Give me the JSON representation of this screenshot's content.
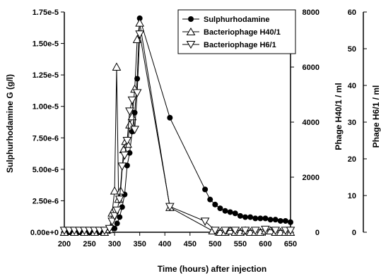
{
  "chart_data": {
    "type": "line",
    "xlabel": "Time (hours) after injection",
    "ylabel_left": "Sulphurhodamine G (g/l)",
    "ylabel_right1": "Phage H40/1 / ml",
    "ylabel_right2": "Phage H6/1 / ml",
    "xlim": [
      200,
      650
    ],
    "ylim_left": [
      0,
      1.75e-05
    ],
    "ylim_right1": [
      0,
      8000
    ],
    "ylim_right2": [
      0,
      60
    ],
    "x_ticks": [
      "200",
      "250",
      "300",
      "350",
      "400",
      "450",
      "500",
      "550",
      "600",
      "650"
    ],
    "y_left_ticks": [
      "0.00e+0",
      "2.50e-6",
      "5.00e-6",
      "7.50e-6",
      "1.00e-5",
      "1.25e-5",
      "1.50e-5",
      "1.75e-5"
    ],
    "y_right1_ticks": [
      "0",
      "2000",
      "4000",
      "6000",
      "8000"
    ],
    "y_right2_ticks": [
      "0",
      "10",
      "20",
      "30",
      "40",
      "50",
      "60"
    ],
    "grid": false,
    "legend_position": "top-right",
    "series": [
      {
        "name": "Sulphurhodamine",
        "axis": "left",
        "marker": "filled-circle",
        "x": [
          200,
          210,
          220,
          230,
          240,
          250,
          260,
          270,
          280,
          290,
          300,
          305,
          310,
          315,
          320,
          325,
          330,
          335,
          340,
          345,
          350,
          410,
          480,
          490,
          500,
          510,
          520,
          530,
          540,
          550,
          560,
          570,
          580,
          590,
          600,
          610,
          620,
          630,
          640,
          650
        ],
        "y": [
          0,
          0,
          0,
          0,
          0,
          0,
          0,
          0,
          0,
          1e-07,
          3e-07,
          7e-07,
          1.2e-06,
          2e-06,
          3e-06,
          5.3e-06,
          6.3e-06,
          8e-06,
          9.5e-06,
          1.22e-05,
          1.7e-05,
          9.1e-06,
          3.4e-06,
          2.6e-06,
          2.2e-06,
          1.9e-06,
          1.7e-06,
          1.6e-06,
          1.5e-06,
          1.3e-06,
          1.2e-06,
          1.2e-06,
          1.1e-06,
          1.1e-06,
          1.1e-06,
          1e-06,
          1e-06,
          9e-07,
          9e-07,
          8e-07
        ]
      },
      {
        "name": "Bacteriophage H40/1",
        "axis": "right1",
        "marker": "open-triangle-up",
        "x": [
          200,
          220,
          240,
          260,
          280,
          290,
          295,
          300,
          304,
          308,
          312,
          318,
          322,
          326,
          330,
          335,
          340,
          345,
          350,
          410,
          495,
          510,
          520,
          530,
          540,
          550,
          560,
          570,
          580,
          590,
          600,
          610,
          620,
          630,
          640,
          650
        ],
        "y": [
          0,
          0,
          0,
          0,
          0,
          100,
          700,
          1500,
          6000,
          1200,
          1500,
          3000,
          3300,
          3200,
          3900,
          4200,
          5200,
          7000,
          7600,
          900,
          50,
          0,
          0,
          50,
          0,
          0,
          50,
          0,
          0,
          0,
          50,
          50,
          0,
          0,
          0,
          0
        ]
      },
      {
        "name": "Bacteriophage H6/1",
        "axis": "right2",
        "marker": "open-triangle-down",
        "x": [
          200,
          210,
          220,
          230,
          240,
          250,
          260,
          270,
          280,
          290,
          295,
          300,
          305,
          310,
          315,
          320,
          325,
          330,
          335,
          340,
          345,
          350,
          410,
          480,
          500,
          520,
          540,
          560,
          580,
          600,
          620,
          640,
          650
        ],
        "y": [
          0.5,
          0.5,
          0.5,
          0.5,
          0.5,
          0.5,
          0.5,
          0.5,
          0.5,
          1,
          3,
          4.5,
          6,
          9,
          18,
          21,
          25,
          33,
          36,
          28,
          38,
          54,
          7,
          3,
          0.5,
          0.5,
          0.5,
          0.5,
          0.5,
          0.8,
          0.5,
          0.5,
          0.5
        ]
      }
    ]
  }
}
